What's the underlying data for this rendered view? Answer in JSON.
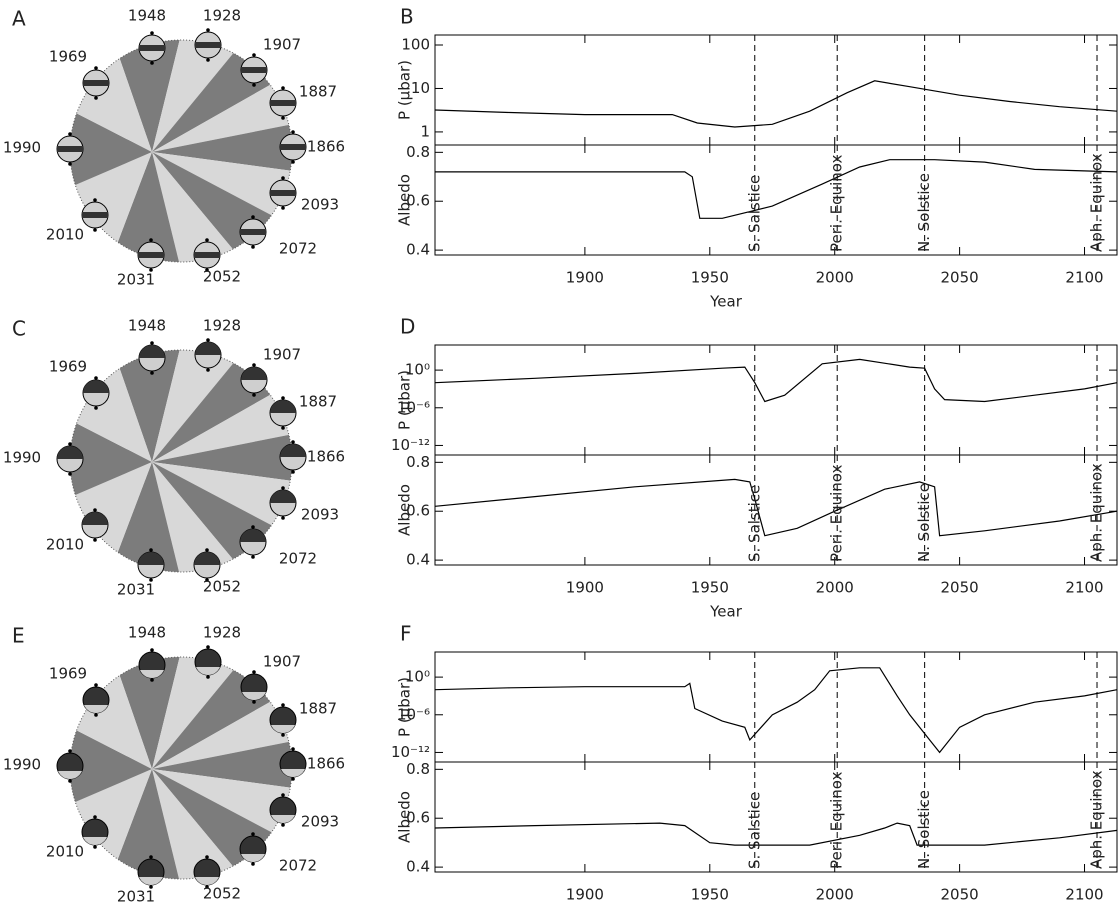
{
  "chart_data": [
    {
      "type": "orbit",
      "label": "A",
      "years": [
        "1948",
        "1928",
        "1907",
        "1887",
        "1866",
        "2093",
        "2072",
        "2052",
        "2031",
        "2010",
        "1990",
        "1969"
      ]
    },
    {
      "type": "line",
      "label": "B",
      "xlabel": "Year",
      "xlim": [
        1840,
        2113
      ],
      "xticks": [
        1900,
        1950,
        2000,
        2050,
        2100
      ],
      "markers": [
        {
          "x": 1968,
          "label": "S. Salstice"
        },
        {
          "x": 2001,
          "label": "Peri. Equinox"
        },
        {
          "x": 2036,
          "label": "N. Solstice"
        },
        {
          "x": 2105,
          "label": "Aph. Equinox"
        }
      ],
      "panels": [
        {
          "ylabel": "P (μbar)",
          "log": true,
          "ylim": [
            0.5,
            170
          ],
          "yticks": [
            1,
            10,
            100
          ],
          "x": [
            1840,
            1870,
            1900,
            1935,
            1945,
            1960,
            1975,
            1990,
            2005,
            2016,
            2030,
            2050,
            2070,
            2090,
            2113
          ],
          "values": [
            3.2,
            2.8,
            2.5,
            2.5,
            1.6,
            1.3,
            1.5,
            3,
            8,
            15,
            11,
            7,
            5,
            3.8,
            3
          ]
        },
        {
          "ylabel": "Albedo",
          "log": false,
          "ylim": [
            0.38,
            0.83
          ],
          "yticks": [
            0.4,
            0.6,
            0.8
          ],
          "x": [
            1840,
            1900,
            1940,
            1943,
            1946,
            1955,
            1975,
            1995,
            2010,
            2022,
            2040,
            2060,
            2080,
            2113
          ],
          "values": [
            0.72,
            0.72,
            0.72,
            0.7,
            0.53,
            0.53,
            0.58,
            0.67,
            0.74,
            0.77,
            0.77,
            0.76,
            0.73,
            0.72
          ]
        }
      ]
    },
    {
      "type": "orbit",
      "label": "C",
      "years": [
        "1948",
        "1928",
        "1907",
        "1887",
        "1866",
        "2093",
        "2072",
        "2052",
        "2031",
        "2010",
        "1990",
        "1969"
      ]
    },
    {
      "type": "line",
      "label": "D",
      "xlabel": "Year",
      "xlim": [
        1840,
        2113
      ],
      "xticks": [
        1900,
        1950,
        2000,
        2050,
        2100
      ],
      "markers": [
        {
          "x": 1968,
          "label": "S. Salstice"
        },
        {
          "x": 2001,
          "label": "Peri. Equinox"
        },
        {
          "x": 2036,
          "label": "N. Solstice"
        },
        {
          "x": 2105,
          "label": "Aph. Equinox"
        }
      ],
      "panels": [
        {
          "ylabel": "P (μbar)",
          "log": true,
          "ylim": [
            3e-14,
            10000
          ],
          "yticks": [
            {
              "value": 1,
              "label": "10⁰"
            },
            {
              "value": 1e-06,
              "label": "10⁻⁶"
            },
            {
              "value": 1e-12,
              "label": "10⁻¹²"
            }
          ],
          "x": [
            1840,
            1880,
            1920,
            1955,
            1964,
            1968,
            1972,
            1980,
            1995,
            2010,
            2030,
            2036,
            2040,
            2044,
            2060,
            2080,
            2100,
            2113
          ],
          "values": [
            0.01,
            0.05,
            0.3,
            2,
            3,
            0.01,
            1e-05,
            0.0001,
            10,
            50,
            3,
            2,
            0.001,
            2e-05,
            1e-05,
            0.0001,
            0.001,
            0.01
          ]
        },
        {
          "ylabel": "Albedo",
          "log": false,
          "ylim": [
            0.38,
            0.83
          ],
          "yticks": [
            0.4,
            0.6,
            0.8
          ],
          "x": [
            1840,
            1880,
            1920,
            1960,
            1966,
            1968,
            1972,
            1985,
            2000,
            2020,
            2034,
            2040,
            2042,
            2060,
            2090,
            2113
          ],
          "values": [
            0.62,
            0.66,
            0.7,
            0.73,
            0.72,
            0.65,
            0.5,
            0.53,
            0.6,
            0.69,
            0.72,
            0.7,
            0.5,
            0.52,
            0.56,
            0.6
          ]
        }
      ]
    },
    {
      "type": "orbit",
      "label": "E",
      "years": [
        "1948",
        "1928",
        "1907",
        "1887",
        "1866",
        "2093",
        "2072",
        "2052",
        "2031",
        "2010",
        "1990",
        "1969"
      ]
    },
    {
      "type": "line",
      "label": "F",
      "xlim": [
        1840,
        2113
      ],
      "xticks": [
        1900,
        1950,
        2000,
        2050,
        2100
      ],
      "markers": [
        {
          "x": 1968,
          "label": "S. Salstice"
        },
        {
          "x": 2001,
          "label": "Peri. Equinox"
        },
        {
          "x": 2036,
          "label": "N. Solstice"
        },
        {
          "x": 2105,
          "label": "Aph. Equinox"
        }
      ],
      "panels": [
        {
          "ylabel": "P (μbar)",
          "log": true,
          "ylim": [
            3e-14,
            10000
          ],
          "yticks": [
            {
              "value": 1,
              "label": "10⁰"
            },
            {
              "value": 1e-06,
              "label": "10⁻⁶"
            },
            {
              "value": 1e-12,
              "label": "10⁻¹²"
            }
          ],
          "x": [
            1840,
            1870,
            1900,
            1940,
            1942,
            1944,
            1955,
            1964,
            1966,
            1975,
            1985,
            1992,
            1998,
            2010,
            2018,
            2025,
            2030,
            2038,
            2042,
            2050,
            2060,
            2080,
            2100,
            2113
          ],
          "values": [
            0.01,
            0.02,
            0.03,
            0.03,
            0.1,
            1e-05,
            1e-07,
            1e-08,
            1e-10,
            1e-06,
            0.0001,
            0.01,
            10,
            30,
            30,
            0.001,
            1e-06,
            1e-10,
            1e-12,
            1e-08,
            1e-06,
            0.0001,
            0.001,
            0.01
          ]
        },
        {
          "ylabel": "Albedo",
          "log": false,
          "ylim": [
            0.38,
            0.83
          ],
          "yticks": [
            0.4,
            0.6,
            0.8
          ],
          "x": [
            1840,
            1880,
            1930,
            1940,
            1950,
            1960,
            1990,
            2010,
            2020,
            2025,
            2030,
            2033,
            2060,
            2090,
            2113
          ],
          "values": [
            0.56,
            0.57,
            0.58,
            0.57,
            0.5,
            0.49,
            0.49,
            0.53,
            0.56,
            0.58,
            0.57,
            0.49,
            0.49,
            0.52,
            0.55
          ]
        }
      ]
    }
  ]
}
